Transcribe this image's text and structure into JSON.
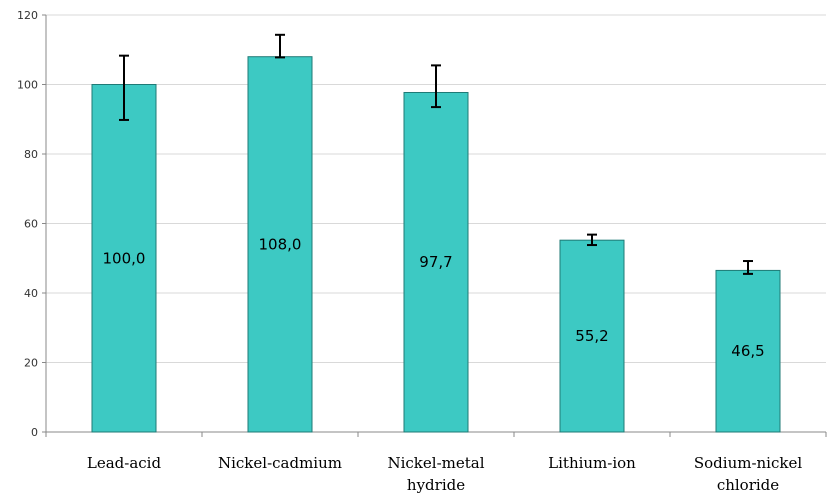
{
  "chart_data": {
    "type": "bar",
    "title": "",
    "xlabel": "",
    "ylabel": "",
    "ylim": [
      0,
      120
    ],
    "yticks": [
      0,
      20,
      40,
      60,
      80,
      100,
      120
    ],
    "grid": true,
    "categories": [
      [
        "Lead-acid"
      ],
      [
        "Nickel-cadmium"
      ],
      [
        "Nickel-metal",
        "hydride"
      ],
      [
        "Lithium-ion"
      ],
      [
        "Sodium-nickel",
        "chloride"
      ]
    ],
    "values": [
      100.0,
      108.0,
      97.7,
      55.2,
      46.5
    ],
    "value_labels": [
      "100,0",
      "108,0",
      "97,7",
      "55,2",
      "46,5"
    ],
    "error_bars": [
      {
        "low": 89.8,
        "high": 108.3
      },
      {
        "low": 107.8,
        "high": 114.3
      },
      {
        "low": 93.5,
        "high": 105.5
      },
      {
        "low": 53.8,
        "high": 56.8
      },
      {
        "low": 45.5,
        "high": 49.2
      }
    ],
    "colors": {
      "bar_fill": "#3DC9C3",
      "bar_stroke": "#1F7A76",
      "gridline": "#D9D9D9",
      "axis": "#888888",
      "error_bar": "#000000"
    }
  }
}
